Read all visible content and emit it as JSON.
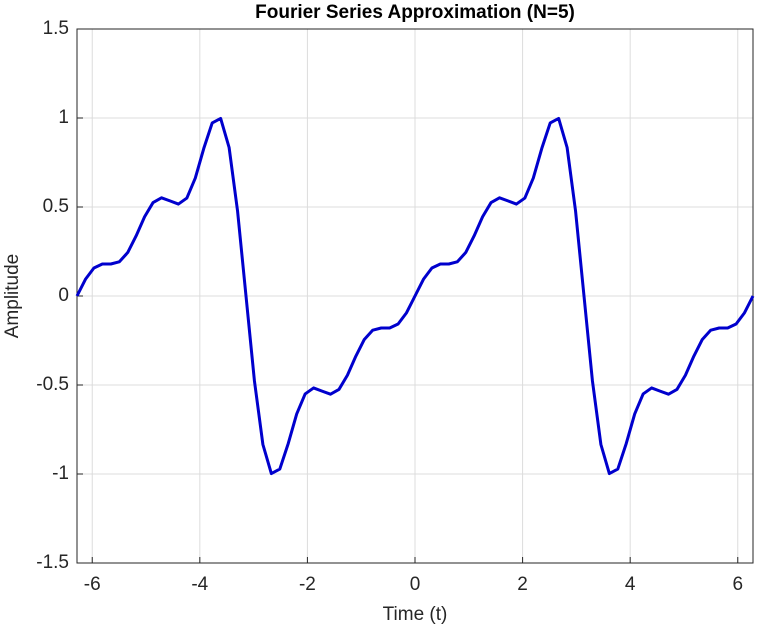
{
  "chart_data": {
    "type": "line",
    "title": "Fourier Series Approximation (N=5)",
    "xlabel": "Time (t)",
    "ylabel": "Amplitude",
    "color": "#0000cd",
    "grid": true,
    "xlim": [
      -6.2832,
      6.2832
    ],
    "ylim": [
      -1.5,
      1.5
    ],
    "xticks": [
      -6,
      -4,
      -2,
      0,
      2,
      4,
      6
    ],
    "yticks": [
      -1.5,
      -1,
      -0.5,
      0,
      0.5,
      1,
      1.5
    ],
    "x": [
      -6.2832,
      -6.1261,
      -5.969,
      -5.8119,
      -5.6549,
      -5.4978,
      -5.3407,
      -5.1836,
      -5.0265,
      -4.8695,
      -4.7124,
      -4.5553,
      -4.3982,
      -4.2412,
      -4.0841,
      -3.927,
      -3.7699,
      -3.6128,
      -3.4558,
      -3.2987,
      -3.1416,
      -2.9845,
      -2.8274,
      -2.6704,
      -2.5133,
      -2.3562,
      -2.1991,
      -2.042,
      -1.885,
      -1.7279,
      -1.5708,
      -1.4137,
      -1.2566,
      -1.0996,
      -0.9425,
      -0.7854,
      -0.6283,
      -0.4712,
      -0.3142,
      -0.1571,
      0,
      0.1571,
      0.3142,
      0.4712,
      0.6283,
      0.7854,
      0.9425,
      1.0996,
      1.2566,
      1.4137,
      1.5708,
      1.7279,
      1.885,
      2.042,
      2.1991,
      2.3562,
      2.5133,
      2.6704,
      2.8274,
      2.9845,
      3.1416,
      3.2987,
      3.4558,
      3.6128,
      3.7699,
      3.927,
      4.0841,
      4.2412,
      4.3982,
      4.5553,
      4.7124,
      4.8695,
      5.0265,
      5.1836,
      5.3407,
      5.4978,
      5.6549,
      5.8119,
      5.969,
      6.1261,
      6.2832
    ],
    "values": [
      0,
      0.094,
      0.1572,
      0.1797,
      0.1797,
      0.1919,
      0.2441,
      0.3379,
      0.4451,
      0.525,
      0.5518,
      0.5345,
      0.5165,
      0.5502,
      0.6625,
      0.8285,
      0.9724,
      0.9975,
      0.8342,
      0.4779,
      0,
      -0.4779,
      -0.8342,
      -0.9975,
      -0.9724,
      -0.8285,
      -0.6625,
      -0.5502,
      -0.5165,
      -0.5345,
      -0.5518,
      -0.525,
      -0.4451,
      -0.3379,
      -0.2441,
      -0.1919,
      -0.1797,
      -0.1797,
      -0.1572,
      -0.094,
      0,
      0.094,
      0.1572,
      0.1797,
      0.1797,
      0.1919,
      0.2441,
      0.3379,
      0.4451,
      0.525,
      0.5518,
      0.5345,
      0.5165,
      0.5502,
      0.6625,
      0.8285,
      0.9724,
      0.9975,
      0.8342,
      0.4779,
      0,
      -0.4779,
      -0.8342,
      -0.9975,
      -0.9724,
      -0.8285,
      -0.6625,
      -0.5502,
      -0.5165,
      -0.5345,
      -0.5518,
      -0.525,
      -0.4451,
      -0.3379,
      -0.2441,
      -0.1919,
      -0.1797,
      -0.1797,
      -0.1572,
      -0.094,
      0
    ]
  }
}
